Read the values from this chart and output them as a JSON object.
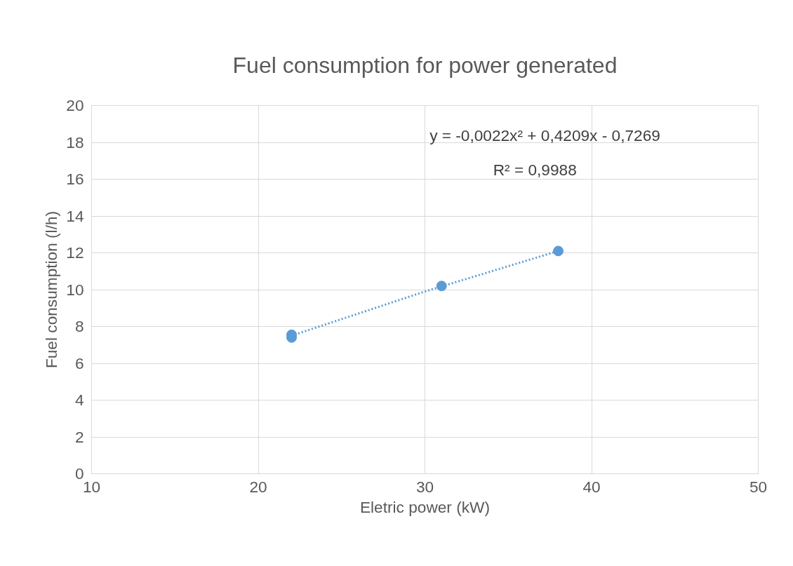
{
  "chart_data": {
    "type": "scatter",
    "title": "Fuel consumption for power generated",
    "xlabel": "Eletric power (kW)",
    "ylabel": "Fuel consumption (l/h)",
    "xlim": [
      10,
      50
    ],
    "xticks": [
      10,
      20,
      30,
      40,
      50
    ],
    "ylim": [
      0,
      20
    ],
    "yticks": [
      0,
      2,
      4,
      6,
      8,
      10,
      12,
      14,
      16,
      18,
      20
    ],
    "grid": true,
    "series": [
      {
        "color": "#5b9bd5",
        "marker": "circle",
        "x": [
          22,
          22,
          31,
          38
        ],
        "values": [
          7.55,
          7.4,
          10.2,
          12.1
        ]
      },
      {
        "type": "line",
        "color": "#5b9bd5",
        "line_style": "dotted",
        "x": [
          22,
          26,
          30,
          34,
          38
        ],
        "values": [
          7.5,
          8.7,
          9.9,
          11.0,
          12.1
        ]
      }
    ],
    "annotations": [
      "y = -0,0022x² + 0,4209x - 0,7269",
      "R² = 0,9988"
    ]
  }
}
